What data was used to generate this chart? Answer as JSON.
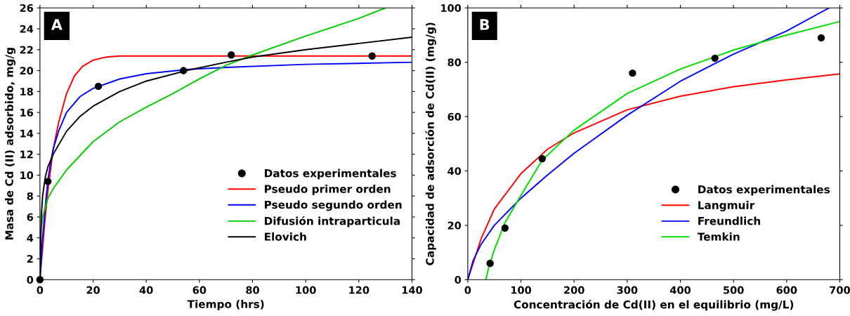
{
  "chart_data": [
    {
      "type": "line",
      "xlabel": "Tiempo (hrs)",
      "ylabel": "Masa de Cd (II) adsorbido, mg/g",
      "annotations": [
        "A"
      ],
      "xlim": [
        0,
        140
      ],
      "xticks": [
        0,
        20,
        40,
        60,
        80,
        100,
        120,
        140
      ],
      "ylim": [
        0,
        26
      ],
      "yticks": [
        0,
        2,
        4,
        6,
        8,
        10,
        12,
        14,
        16,
        18,
        20,
        22,
        24,
        26
      ],
      "grid": false,
      "legend": "bottom right",
      "series": [
        {
          "name": "Datos experimentales",
          "type": "scatter",
          "marker": "circle",
          "color": "#000000",
          "x": [
            0,
            3,
            22,
            54,
            72,
            125
          ],
          "values": [
            0,
            9.4,
            18.5,
            20,
            21.5,
            21.4
          ]
        },
        {
          "name": "Pseudo primer orden",
          "color": "#ff0000",
          "marker": "none",
          "x": [
            0,
            1,
            2,
            3,
            4,
            5,
            7,
            10,
            13,
            16,
            20,
            25,
            30,
            140
          ],
          "values": [
            0,
            3,
            6,
            8.5,
            10.5,
            12.5,
            15,
            17.8,
            19.5,
            20.4,
            21,
            21.3,
            21.4,
            21.4
          ]
        },
        {
          "name": "Pseudo segundo orden",
          "color": "#0000ff",
          "marker": "none",
          "x": [
            0,
            1,
            2,
            3,
            4,
            5,
            7,
            10,
            15,
            20,
            30,
            40,
            55,
            70,
            100,
            140
          ],
          "values": [
            0,
            4,
            7,
            9.5,
            11.2,
            12.5,
            14.2,
            16,
            17.5,
            18.3,
            19.2,
            19.7,
            20.1,
            20.3,
            20.6,
            20.8
          ]
        },
        {
          "name": "Difusión intraparticula",
          "color": "#00cc00",
          "marker": "none",
          "x": [
            0,
            0.3,
            1,
            3,
            5,
            10,
            20,
            30,
            40,
            50,
            60,
            70,
            80,
            100,
            120,
            130
          ],
          "values": [
            0,
            4.5,
            6,
            7.8,
            8.7,
            10.5,
            13.2,
            15.1,
            16.5,
            17.8,
            19.2,
            20.5,
            21.5,
            23.3,
            25,
            26
          ]
        },
        {
          "name": "Elovich",
          "color": "#000000",
          "marker": "none",
          "x": [
            0,
            0.5,
            1,
            2,
            3,
            5,
            10,
            15,
            20,
            30,
            40,
            55,
            70,
            80,
            100,
            120,
            140
          ],
          "values": [
            0,
            6,
            8,
            9.8,
            10.8,
            12,
            14.2,
            15.6,
            16.6,
            18,
            19,
            20,
            20.8,
            21.3,
            22,
            22.6,
            23.2
          ]
        }
      ]
    },
    {
      "type": "line",
      "xlabel": "Concentración de Cd(II) en el equilibrio (mg/L)",
      "ylabel": "Capacidad de adsorción de Cd(II) (mg/g)",
      "annotations": [
        "B"
      ],
      "xlim": [
        0,
        700
      ],
      "xticks": [
        0,
        100,
        200,
        300,
        400,
        500,
        600,
        700
      ],
      "ylim": [
        0,
        100
      ],
      "yticks": [
        0,
        20,
        40,
        60,
        80,
        100
      ],
      "grid": false,
      "legend": "bottom right",
      "series": [
        {
          "name": "Datos experimentales",
          "type": "scatter",
          "marker": "circle",
          "color": "#000000",
          "x": [
            42,
            70,
            140,
            310,
            465,
            665
          ],
          "values": [
            6,
            19,
            44.5,
            76,
            81.5,
            89
          ]
        },
        {
          "name": "Langmuir",
          "color": "#ff0000",
          "marker": "none",
          "x": [
            0,
            25,
            50,
            100,
            150,
            200,
            300,
            400,
            500,
            600,
            700
          ],
          "values": [
            0,
            15,
            26,
            39,
            48,
            54,
            62.5,
            67.5,
            71,
            73.5,
            75.7
          ]
        },
        {
          "name": "Freundlich",
          "color": "#0000ff",
          "marker": "none",
          "x": [
            0,
            10,
            25,
            50,
            100,
            150,
            200,
            300,
            400,
            500,
            600,
            680
          ],
          "values": [
            0,
            7,
            13,
            20,
            30,
            38.5,
            46.5,
            60.5,
            73,
            83,
            91.5,
            100
          ]
        },
        {
          "name": "Temkin",
          "color": "#00dd00",
          "marker": "none",
          "x": [
            34,
            40,
            50,
            70,
            100,
            140,
            200,
            300,
            400,
            465,
            500,
            600,
            700
          ],
          "values": [
            0,
            5,
            11,
            21,
            31,
            44,
            55,
            68.5,
            77.5,
            82,
            84.5,
            90,
            95
          ]
        }
      ]
    }
  ]
}
